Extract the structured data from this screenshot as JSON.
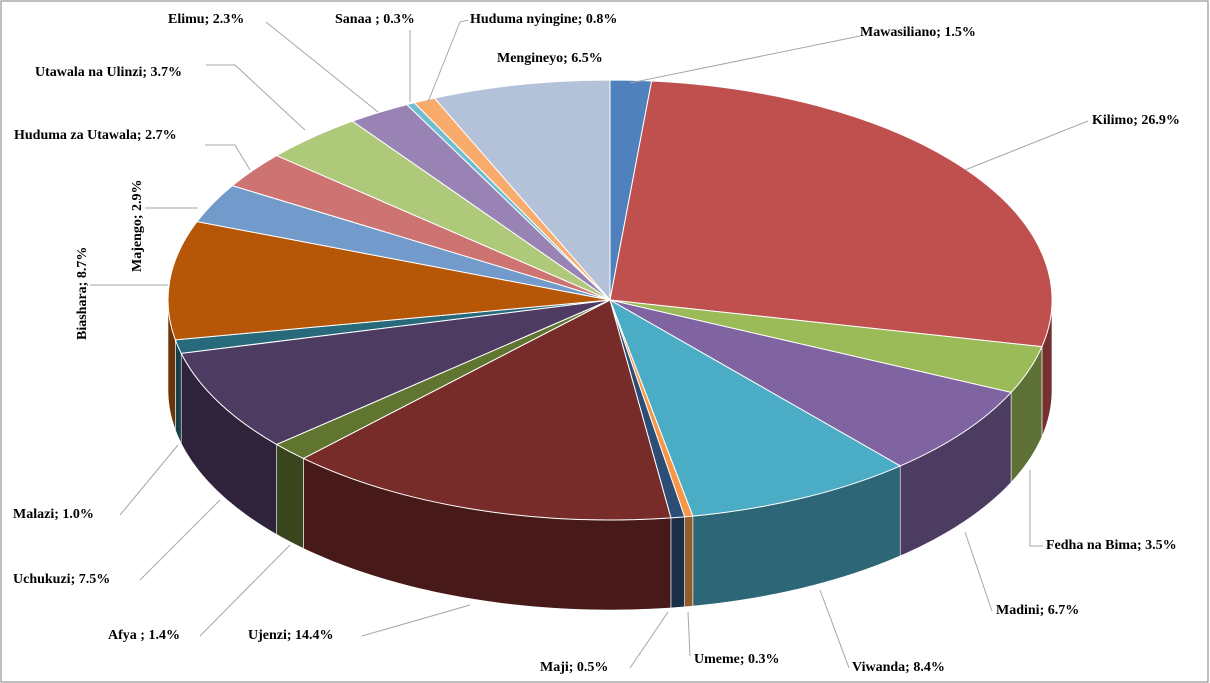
{
  "chart_data": {
    "type": "pie3d",
    "categories": [
      "Mawasiliano",
      "Kilimo",
      "Fedha na Bima",
      "Madini",
      "Viwanda",
      "Umeme",
      "Maji",
      "Ujenzi",
      "Afya",
      "Uchukuzi",
      "Malazi",
      "Biashara",
      "Majengo",
      "Huduma za Utawala",
      "Utawala na Ulinzi",
      "Elimu",
      "Sanaa",
      "Huduma nyingine",
      "Mengineyo"
    ],
    "values": [
      1.5,
      26.9,
      3.5,
      6.7,
      8.4,
      0.3,
      0.5,
      14.4,
      1.4,
      7.5,
      1.0,
      8.7,
      2.9,
      2.7,
      3.7,
      2.3,
      0.3,
      0.8,
      6.5
    ],
    "value_labels": [
      "; 1.5%",
      "; 26.9%",
      "; 3.5%",
      "; 6.7%",
      "; 8.4%",
      "; 0.3%",
      "; 0.5%",
      "; 14.4%",
      " ; 1.4%",
      "; 7.5%",
      "; 1.0%",
      "; 8.7%",
      "; 2.9%",
      "; 2.7%",
      "; 3.7%",
      "; 2.3%",
      " ; 0.3%",
      "; 0.8%",
      "; 6.5%"
    ],
    "colors": [
      "#4f81bd",
      "#c0504d",
      "#9bbb59",
      "#8064a2",
      "#4bacc6",
      "#f79646",
      "#2c4d75",
      "#772c2a",
      "#5f7530",
      "#4d3b62",
      "#276a7c",
      "#b65708",
      "#729aca",
      "#cd7371",
      "#afc97a",
      "#9983b5",
      "#6fbdd1",
      "#f9ab6b",
      "#b4c2d9"
    ]
  }
}
